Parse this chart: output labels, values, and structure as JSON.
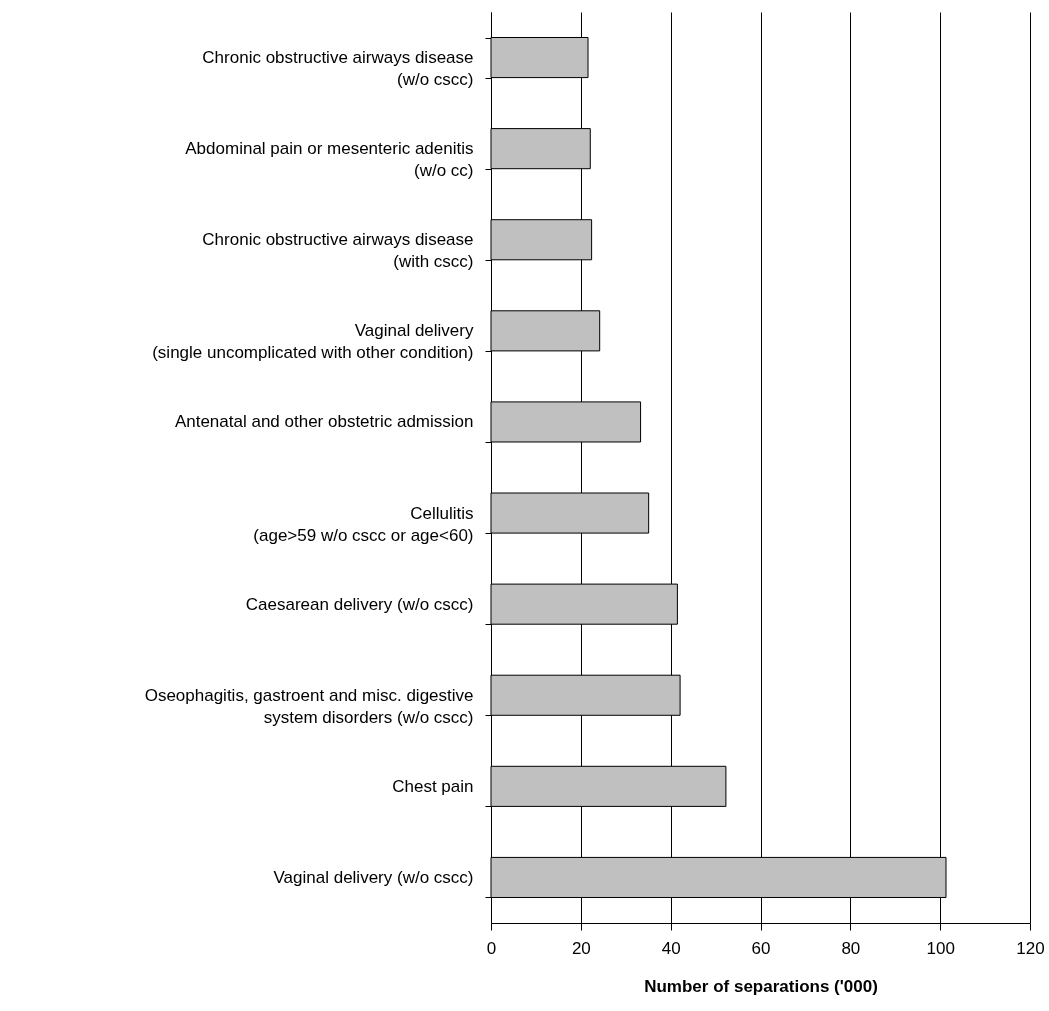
{
  "chart_data": {
    "type": "bar",
    "orientation": "horizontal",
    "xlabel": "Number of separations ('000)",
    "categories": [
      "Chronic obstructive airways disease\n(w/o cscc)",
      "Abdominal pain or mesenteric adenitis\n(w/o cc)",
      "Chronic obstructive airways disease\n(with cscc)",
      "Vaginal delivery\n(single uncomplicated with other condition)",
      "Antenatal and other obstetric admission",
      "Cellulitis\n(age>59 w/o cscc or age<60)",
      "Caesarean delivery (w/o cscc)",
      "Oseophagitis, gastroent and misc. digestive\nsystem disorders (w/o cscc)",
      "Chest pain",
      "Vaginal delivery (w/o cscc)"
    ],
    "values": [
      21.6,
      22.1,
      22.4,
      24.2,
      33.3,
      35.1,
      41.5,
      42.1,
      52.3,
      101.3
    ],
    "color": "#c0c0c0",
    "xlim": [
      0,
      120
    ],
    "xticks": [
      0,
      20,
      40,
      60,
      80,
      100,
      120
    ],
    "grid": "x"
  }
}
